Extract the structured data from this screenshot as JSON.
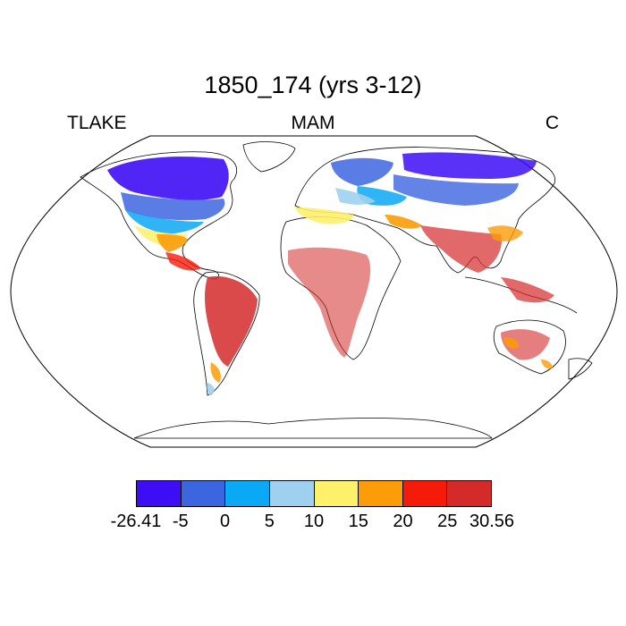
{
  "title": "1850_174 (yrs 3-12)",
  "left_label": "TLAKE",
  "center_label": "MAM",
  "right_label": "C",
  "colorbar": {
    "colors": [
      "#3d0df5",
      "#3c65e0",
      "#0aa8f5",
      "#9fd0ef",
      "#fdf06a",
      "#fb9c08",
      "#f51a0a",
      "#d42a2a"
    ],
    "tick_labels": [
      "-26.41",
      "-5",
      "0",
      "5",
      "10",
      "15",
      "20",
      "25",
      "30.56"
    ]
  }
}
